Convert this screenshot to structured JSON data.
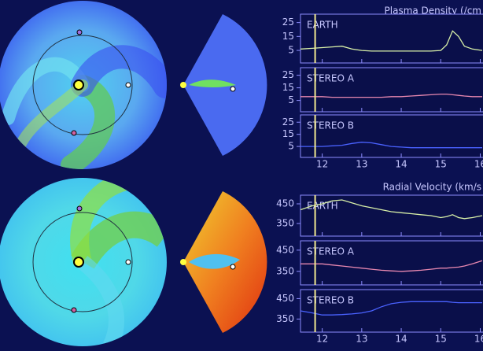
{
  "chart_data": [
    {
      "type": "line",
      "title": "Plasma Density (/cm",
      "x": [
        11.45,
        11.75,
        12.0,
        12.25,
        12.5,
        12.75,
        13.0,
        13.25,
        13.5,
        13.75,
        14.0,
        14.25,
        14.5,
        14.75,
        15.0,
        15.15,
        15.3,
        15.45,
        15.6,
        15.8,
        16.05
      ],
      "xlim": [
        11.45,
        16.05
      ],
      "xticks": [
        12,
        13,
        14,
        15,
        16
      ],
      "ylim": [
        -4,
        31
      ],
      "yticks": [
        5,
        15,
        25
      ],
      "marker_x": 11.82,
      "marker_color": "#f0e890",
      "series": [
        {
          "name": "EARTH",
          "color": "#d8f0a8",
          "values": [
            6,
            6.5,
            7,
            7.5,
            8,
            6,
            5,
            4.5,
            4.5,
            4.5,
            4.5,
            4.5,
            4.5,
            4.5,
            5,
            9,
            19,
            15,
            8,
            6,
            5
          ]
        },
        {
          "name": "STEREO A",
          "color": "#e888b0",
          "values": [
            8,
            8,
            8,
            7.5,
            7.5,
            7.5,
            7.5,
            7.5,
            7.5,
            8,
            8,
            8.5,
            9,
            9.5,
            10,
            10,
            9.5,
            9,
            8.5,
            8,
            8
          ]
        },
        {
          "name": "STEREO B",
          "color": "#4a62ff",
          "values": [
            5,
            5,
            5,
            5.5,
            6,
            7.5,
            8.5,
            8,
            6.5,
            5,
            4.5,
            4,
            4,
            4,
            4,
            4,
            4,
            4,
            4,
            4,
            4
          ]
        }
      ]
    },
    {
      "type": "line",
      "title": "Radial Velocity (km/s",
      "x": [
        11.45,
        11.75,
        12.0,
        12.25,
        12.5,
        12.75,
        13.0,
        13.25,
        13.5,
        13.75,
        14.0,
        14.25,
        14.5,
        14.75,
        15.0,
        15.15,
        15.3,
        15.45,
        15.6,
        15.8,
        16.05
      ],
      "xlim": [
        11.45,
        16.05
      ],
      "xticks": [
        12,
        13,
        14,
        15,
        16
      ],
      "ylim": [
        286,
        494
      ],
      "yticks": [
        350,
        450
      ],
      "marker_x": 11.82,
      "marker_color": "#f0e890",
      "series": [
        {
          "name": "EARTH",
          "color": "#d8f0a8",
          "values": [
            420,
            440,
            450,
            465,
            470,
            455,
            440,
            430,
            420,
            410,
            405,
            400,
            395,
            390,
            380,
            385,
            395,
            380,
            375,
            380,
            390
          ]
        },
        {
          "name": "STEREO A",
          "color": "#e888b0",
          "values": [
            385,
            385,
            385,
            380,
            375,
            370,
            365,
            360,
            355,
            352,
            350,
            352,
            355,
            360,
            365,
            365,
            368,
            370,
            375,
            385,
            400
          ]
        },
        {
          "name": "STEREO B",
          "color": "#4a62ff",
          "values": [
            390,
            380,
            370,
            370,
            372,
            375,
            380,
            390,
            410,
            425,
            432,
            435,
            435,
            435,
            435,
            435,
            432,
            430,
            430,
            430,
            430
          ]
        }
      ]
    }
  ]
}
